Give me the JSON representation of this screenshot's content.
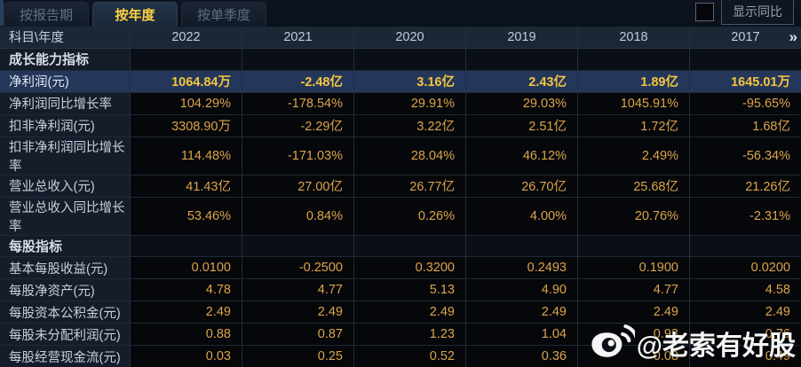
{
  "tabs": [
    {
      "label": "按报告期",
      "active": false
    },
    {
      "label": "按年度",
      "active": true
    },
    {
      "label": "按单季度",
      "active": false
    }
  ],
  "controls": {
    "yoy_checkbox_checked": false,
    "yoy_label": "显示同比"
  },
  "table": {
    "corner_label": "科目\\年度",
    "years": [
      "2022",
      "2021",
      "2020",
      "2019",
      "2018",
      "2017"
    ],
    "more_columns_glyph": "»",
    "rows": [
      {
        "type": "section",
        "label": "成长能力指标",
        "values": [
          "",
          "",
          "",
          "",
          "",
          ""
        ]
      },
      {
        "type": "data",
        "highlight": true,
        "label": "净利润(元)",
        "values": [
          "1064.84万",
          "-2.48亿",
          "3.16亿",
          "2.43亿",
          "1.89亿",
          "1645.01万"
        ]
      },
      {
        "type": "data",
        "highlight": false,
        "label": "净利润同比增长率",
        "values": [
          "104.29%",
          "-178.54%",
          "29.91%",
          "29.03%",
          "1045.91%",
          "-95.65%"
        ]
      },
      {
        "type": "data",
        "highlight": false,
        "label": "扣非净利润(元)",
        "values": [
          "3308.90万",
          "-2.29亿",
          "3.22亿",
          "2.51亿",
          "1.72亿",
          "1.68亿"
        ]
      },
      {
        "type": "data",
        "highlight": false,
        "label": "扣非净利润同比增长率",
        "values": [
          "114.48%",
          "-171.03%",
          "28.04%",
          "46.12%",
          "2.49%",
          "-56.34%"
        ]
      },
      {
        "type": "data",
        "highlight": false,
        "label": "营业总收入(元)",
        "values": [
          "41.43亿",
          "27.00亿",
          "26.77亿",
          "26.70亿",
          "25.68亿",
          "21.26亿"
        ]
      },
      {
        "type": "data",
        "highlight": false,
        "label": "营业总收入同比增长率",
        "values": [
          "53.46%",
          "0.84%",
          "0.26%",
          "4.00%",
          "20.76%",
          "-2.31%"
        ]
      },
      {
        "type": "section",
        "label": "每股指标",
        "values": [
          "",
          "",
          "",
          "",
          "",
          ""
        ]
      },
      {
        "type": "data",
        "highlight": false,
        "label": "基本每股收益(元)",
        "values": [
          "0.0100",
          "-0.2500",
          "0.3200",
          "0.2493",
          "0.1900",
          "0.0200"
        ]
      },
      {
        "type": "data",
        "highlight": false,
        "label": "每股净资产(元)",
        "values": [
          "4.78",
          "4.77",
          "5.13",
          "4.90",
          "4.77",
          "4.58"
        ]
      },
      {
        "type": "data",
        "highlight": false,
        "label": "每股资本公积金(元)",
        "values": [
          "2.49",
          "2.49",
          "2.49",
          "2.49",
          "2.49",
          "2.49"
        ]
      },
      {
        "type": "data",
        "highlight": false,
        "label": "每股未分配利润(元)",
        "values": [
          "0.88",
          "0.87",
          "1.23",
          "1.04",
          "0.93",
          "0.76"
        ]
      },
      {
        "type": "data",
        "highlight": false,
        "label": "每股经营现金流(元)",
        "values": [
          "0.03",
          "0.25",
          "0.52",
          "0.36",
          "0.08",
          "0.49"
        ]
      }
    ]
  },
  "watermark": {
    "text": "@老索有好股"
  },
  "colors": {
    "accent_gold": "#ffd23f",
    "value_orange": "#dda44a",
    "highlight_row_bg": "#24365a",
    "header_bg": "#1c2735",
    "label_col_bg": "#151d2b",
    "data_cell_bg": "#05070a"
  }
}
